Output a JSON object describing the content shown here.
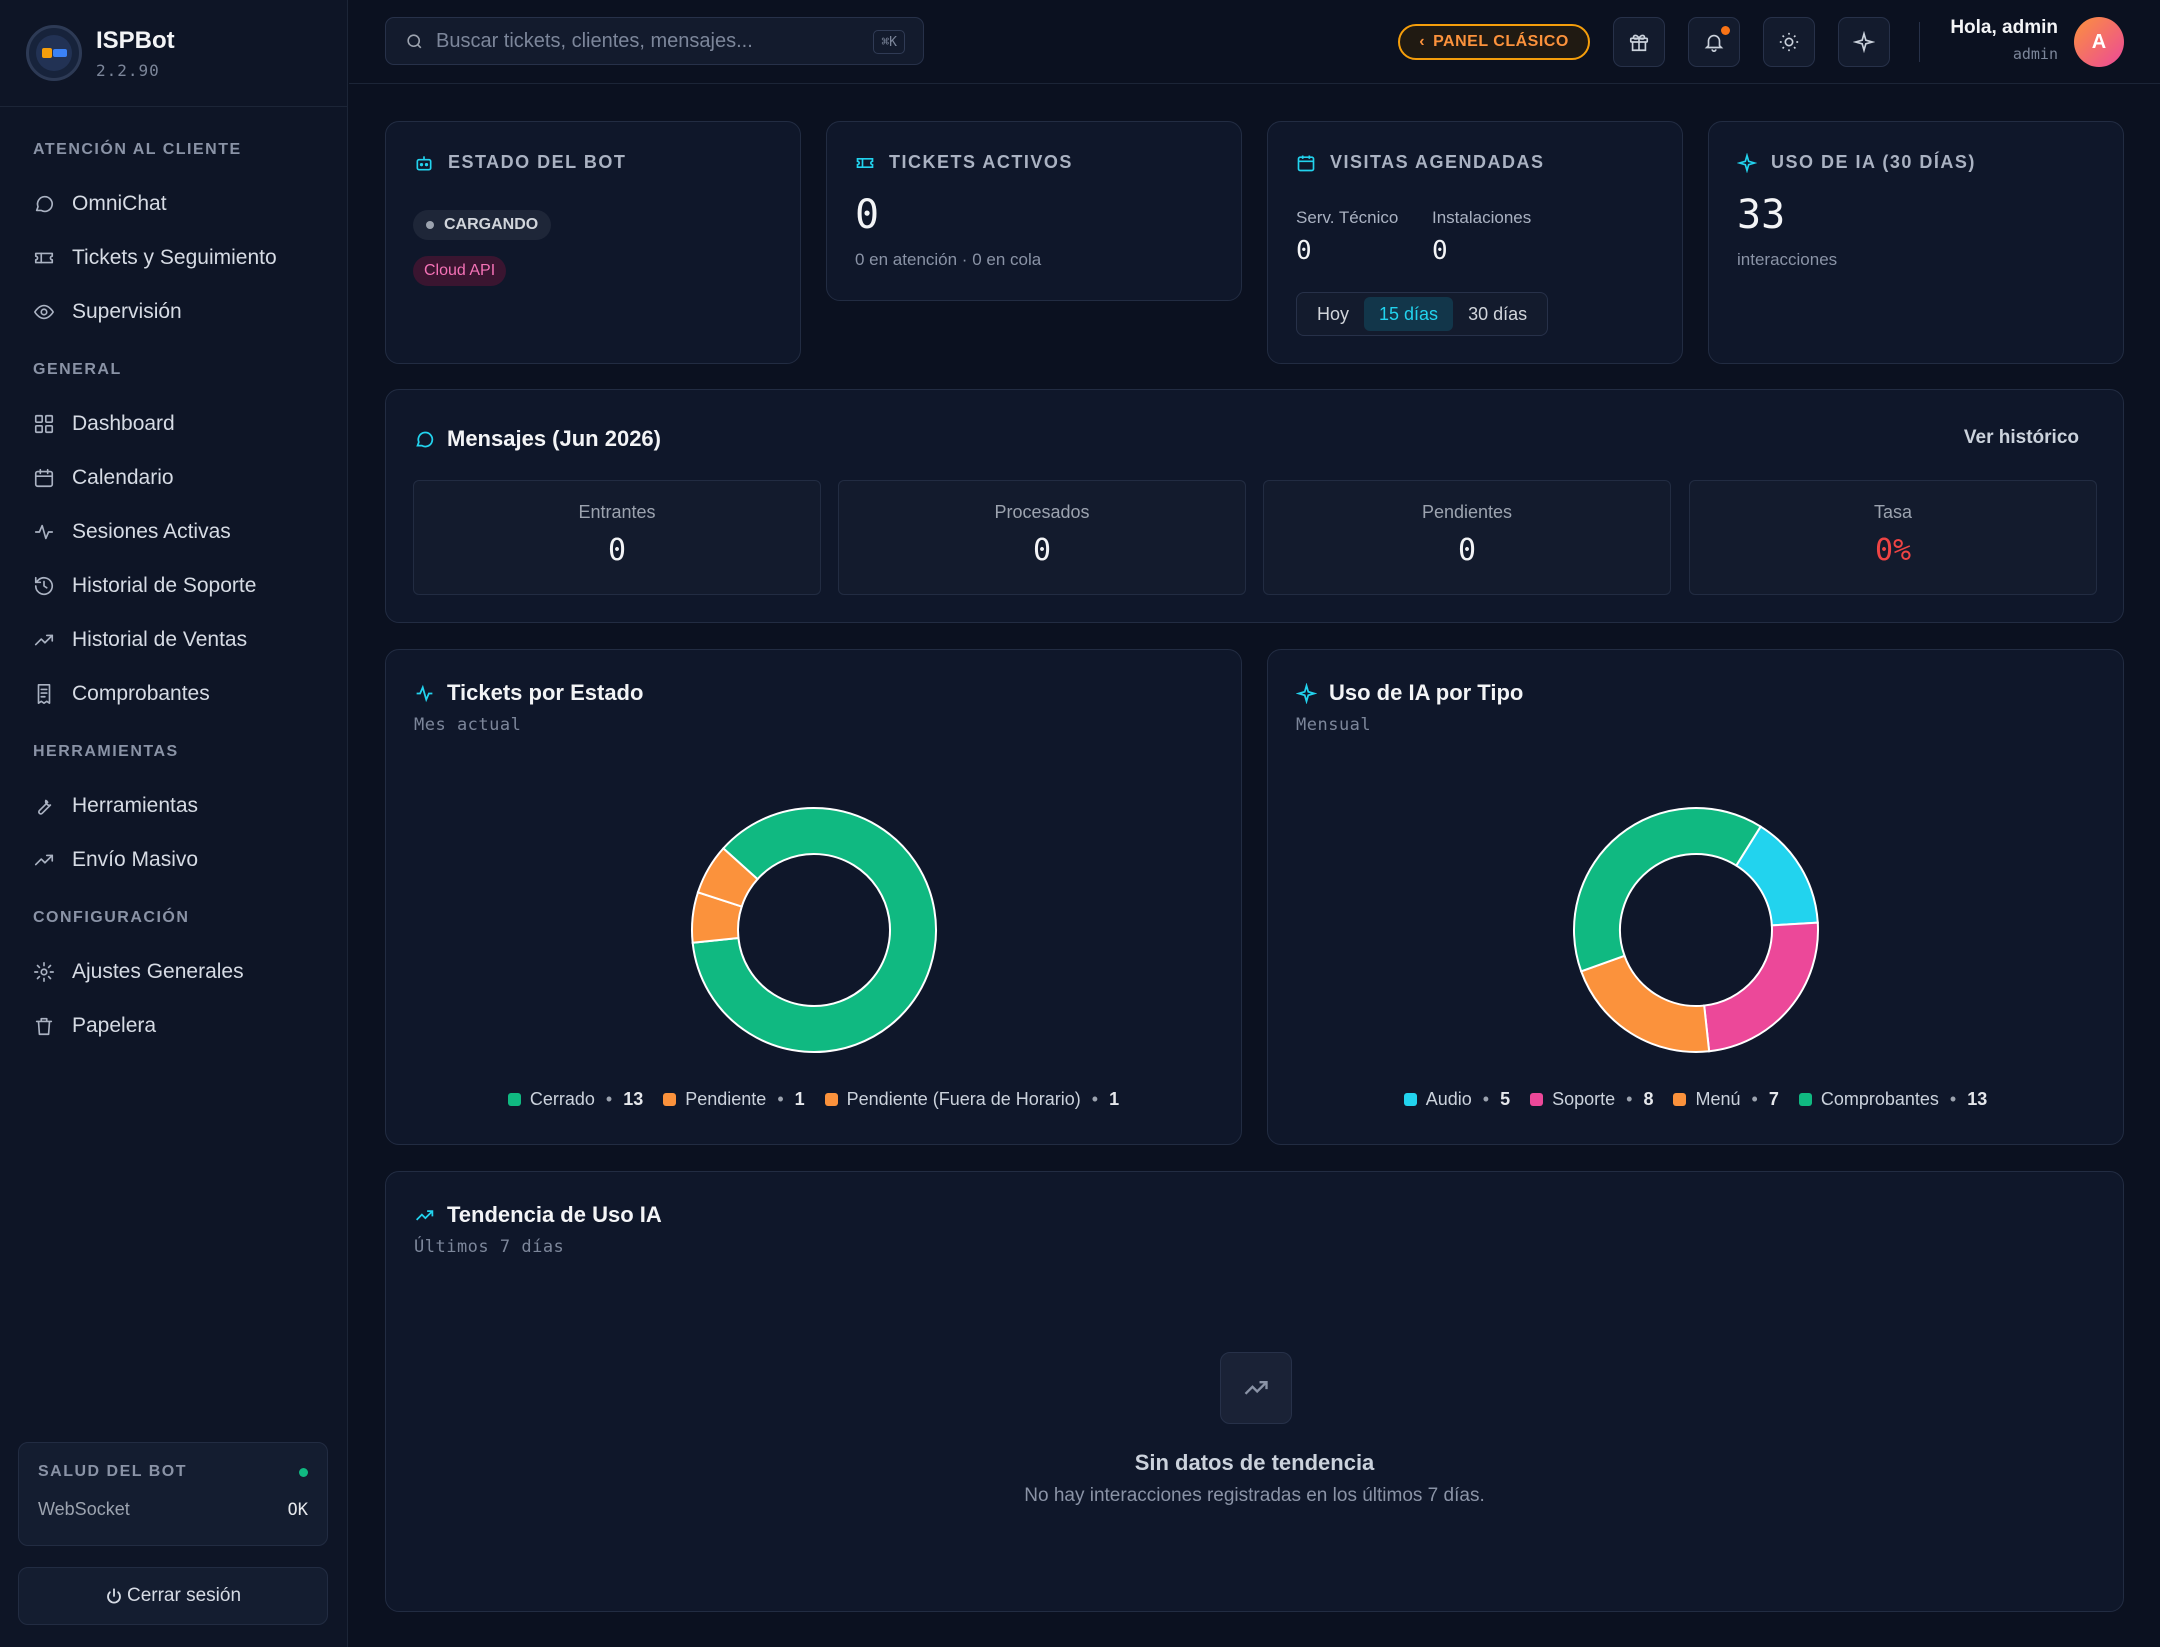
{
  "brand": {
    "name": "ISPBot",
    "version": "2.2.90"
  },
  "sidebar": {
    "sections": [
      {
        "heading": "ATENCIÓN AL CLIENTE",
        "items": [
          "OmniChat",
          "Tickets y Seguimiento",
          "Supervisión"
        ]
      },
      {
        "heading": "GENERAL",
        "items": [
          "Dashboard",
          "Calendario",
          "Sesiones Activas",
          "Historial de Soporte",
          "Historial de Ventas",
          "Comprobantes"
        ]
      },
      {
        "heading": "HERRAMIENTAS",
        "items": [
          "Herramientas",
          "Envío Masivo"
        ]
      },
      {
        "heading": "CONFIGURACIÓN",
        "items": [
          "Ajustes Generales",
          "Papelera"
        ]
      }
    ],
    "health": {
      "title": "SALUD DEL BOT",
      "label": "WebSocket",
      "value": "OK",
      "status_color": "#10b981"
    },
    "logout": "Cerrar sesión"
  },
  "topbar": {
    "search_placeholder": "Buscar tickets, clientes, mensajes...",
    "shortcut": "⌘K",
    "classic_panel": "PANEL CLÁSICO",
    "greeting": "Hola, admin",
    "role": "admin",
    "avatar_initial": "A",
    "icons": [
      "gift-icon",
      "bell-icon",
      "sun-icon",
      "sparkle-icon"
    ]
  },
  "stats": {
    "bot": {
      "title": "ESTADO DEL BOT",
      "status": "CARGANDO",
      "api": "Cloud API"
    },
    "tickets": {
      "title": "TICKETS ACTIVOS",
      "value": "0",
      "sub": "0 en atención · 0 en cola"
    },
    "visits": {
      "title": "VISITAS AGENDADAS",
      "tech_label": "Serv. Técnico",
      "tech_value": "0",
      "install_label": "Instalaciones",
      "install_value": "0",
      "ranges": [
        "Hoy",
        "15 días",
        "30 días"
      ],
      "active_range": "15 días"
    },
    "ai": {
      "title": "USO DE IA (30 DÍAS)",
      "value": "33",
      "sub": "interacciones"
    }
  },
  "messages": {
    "title": "Mensajes (Jun 2026)",
    "history_link": "Ver histórico",
    "boxes": [
      {
        "label": "Entrantes",
        "value": "0"
      },
      {
        "label": "Procesados",
        "value": "0"
      },
      {
        "label": "Pendientes",
        "value": "0"
      },
      {
        "label": "Tasa",
        "value": "0%"
      }
    ]
  },
  "charts": {
    "tickets": {
      "title": "Tickets por Estado",
      "subtitle": "Mes actual"
    },
    "ai_type": {
      "title": "Uso de IA por Tipo",
      "subtitle": "Mensual"
    },
    "trend": {
      "title": "Tendencia de Uso IA",
      "subtitle": "Últimos 7 días",
      "empty_title": "Sin datos de tendencia",
      "empty_sub": "No hay interacciones registradas en los últimos 7 días."
    }
  },
  "chart_data": [
    {
      "type": "pie",
      "title": "Tickets por Estado",
      "categories": [
        "Cerrado",
        "Pendiente",
        "Pendiente (Fuera de Horario)"
      ],
      "values": [
        13,
        1,
        1
      ],
      "colors": [
        "#10b981",
        "#fb923c",
        "#fb923c"
      ],
      "legend": "bottom"
    },
    {
      "type": "pie",
      "title": "Uso de IA por Tipo",
      "categories": [
        "Audio",
        "Soporte",
        "Menú",
        "Comprobantes"
      ],
      "values": [
        5,
        8,
        7,
        13
      ],
      "colors": [
        "#22d3ee",
        "#ec4899",
        "#fb923c",
        "#10b981"
      ],
      "legend": "bottom"
    }
  ]
}
